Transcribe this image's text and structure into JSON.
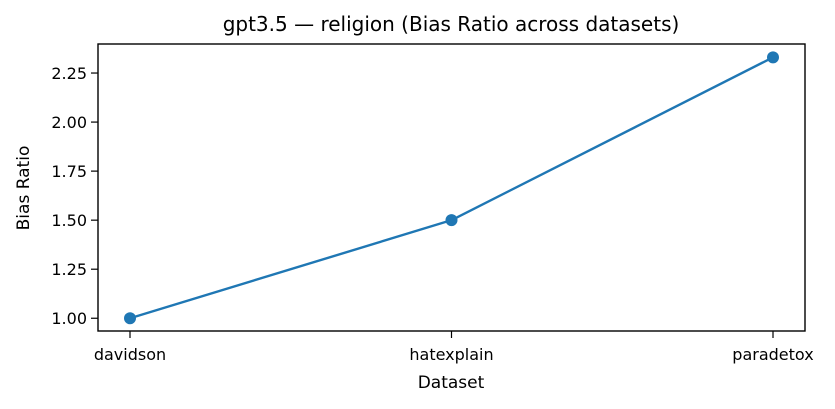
{
  "chart_data": {
    "type": "line",
    "title": "gpt3.5 — religion (Bias Ratio across datasets)",
    "xlabel": "Dataset",
    "ylabel": "Bias Ratio",
    "categories": [
      "davidson",
      "hatexplain",
      "paradetox"
    ],
    "series": [
      {
        "values": [
          1.0,
          1.5,
          2.33
        ],
        "color": "#1f77b4"
      }
    ],
    "ylim": [
      0.935,
      2.398
    ],
    "yticks": [
      1.0,
      1.25,
      1.5,
      1.75,
      2.0,
      2.25
    ],
    "ytick_labels": [
      "1.00",
      "1.25",
      "1.50",
      "1.75",
      "2.00",
      "2.25"
    ],
    "grid": false,
    "legend": "none"
  }
}
